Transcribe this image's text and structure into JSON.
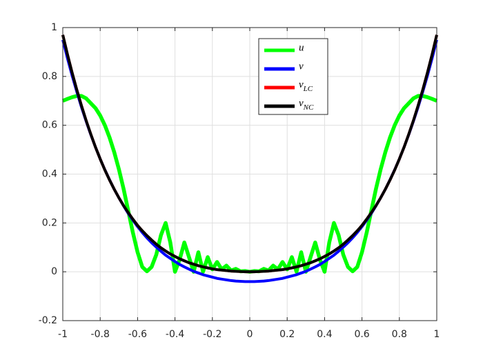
{
  "chart_data": {
    "type": "line",
    "x": [
      -1,
      -0.975,
      -0.95,
      -0.925,
      -0.9,
      -0.875,
      -0.85,
      -0.825,
      -0.8,
      -0.775,
      -0.75,
      -0.725,
      -0.7,
      -0.675,
      -0.65,
      -0.625,
      -0.6,
      -0.575,
      -0.55,
      -0.525,
      -0.5,
      -0.475,
      -0.45,
      -0.425,
      -0.4,
      -0.375,
      -0.35,
      -0.325,
      -0.3,
      -0.275,
      -0.25,
      -0.225,
      -0.2,
      -0.175,
      -0.15,
      -0.125,
      -0.1,
      -0.075,
      -0.05,
      -0.025,
      0,
      0.025,
      0.05,
      0.075,
      0.1,
      0.125,
      0.15,
      0.175,
      0.2,
      0.225,
      0.25,
      0.275,
      0.3,
      0.325,
      0.35,
      0.375,
      0.4,
      0.425,
      0.45,
      0.475,
      0.5,
      0.525,
      0.55,
      0.575,
      0.6,
      0.625,
      0.65,
      0.675,
      0.7,
      0.725,
      0.75,
      0.775,
      0.8,
      0.825,
      0.85,
      0.875,
      0.9,
      0.925,
      0.95,
      0.975,
      1
    ],
    "series": [
      {
        "name": "u",
        "color": "#00ff00",
        "values": [
          0.7,
          0.708,
          0.715,
          0.72,
          0.72,
          0.71,
          0.69,
          0.67,
          0.64,
          0.6,
          0.55,
          0.49,
          0.42,
          0.34,
          0.25,
          0.16,
          0.08,
          0.02,
          0.002,
          0.02,
          0.07,
          0.15,
          0.2,
          0.12,
          0,
          0.05,
          0.12,
          0.06,
          0,
          0.08,
          0,
          0.06,
          0.01,
          0.04,
          0.01,
          0.025,
          0.005,
          0.012,
          0.002,
          0.003,
          0,
          0.003,
          0.002,
          0.012,
          0.005,
          0.025,
          0.01,
          0.04,
          0.01,
          0.06,
          0,
          0.08,
          0,
          0.06,
          0.12,
          0.05,
          0,
          0.12,
          0.2,
          0.15,
          0.07,
          0.02,
          0.002,
          0.02,
          0.08,
          0.16,
          0.25,
          0.34,
          0.42,
          0.49,
          0.55,
          0.6,
          0.64,
          0.67,
          0.69,
          0.71,
          0.72,
          0.72,
          0.715,
          0.708,
          0.7
        ]
      },
      {
        "name": "v",
        "color": "#0000ff",
        "values": [
          0.95,
          0.874,
          0.803,
          0.737,
          0.674,
          0.616,
          0.561,
          0.51,
          0.462,
          0.418,
          0.377,
          0.338,
          0.303,
          0.27,
          0.239,
          0.211,
          0.185,
          0.161,
          0.139,
          0.119,
          0.101,
          0.084,
          0.068,
          0.055,
          0.042,
          0.03,
          0.02,
          0.011,
          0.002,
          -0.005,
          -0.012,
          -0.017,
          -0.022,
          -0.027,
          -0.03,
          -0.033,
          -0.036,
          -0.038,
          -0.039,
          -0.04,
          -0.04,
          -0.04,
          -0.039,
          -0.038,
          -0.036,
          -0.033,
          -0.03,
          -0.027,
          -0.022,
          -0.017,
          -0.012,
          -0.005,
          0.002,
          0.011,
          0.02,
          0.03,
          0.042,
          0.055,
          0.068,
          0.084,
          0.101,
          0.119,
          0.139,
          0.161,
          0.185,
          0.211,
          0.239,
          0.27,
          0.303,
          0.338,
          0.377,
          0.418,
          0.462,
          0.51,
          0.561,
          0.616,
          0.674,
          0.737,
          0.803,
          0.874,
          0.95
        ]
      },
      {
        "name": "v_{LC}",
        "color": "#ff0000",
        "values": [
          0.97,
          0.89,
          0.815,
          0.745,
          0.68,
          0.619,
          0.563,
          0.51,
          0.462,
          0.417,
          0.376,
          0.338,
          0.303,
          0.271,
          0.242,
          0.215,
          0.19,
          0.168,
          0.148,
          0.13,
          0.113,
          0.098,
          0.085,
          0.073,
          0.063,
          0.053,
          0.045,
          0.037,
          0.031,
          0.025,
          0.02,
          0.016,
          0.012,
          0.009,
          0.007,
          0.005,
          0.003,
          0.002,
          0.001,
          0,
          0,
          0,
          0.001,
          0.002,
          0.003,
          0.005,
          0.007,
          0.009,
          0.012,
          0.016,
          0.02,
          0.025,
          0.031,
          0.037,
          0.045,
          0.053,
          0.063,
          0.073,
          0.085,
          0.098,
          0.113,
          0.13,
          0.148,
          0.168,
          0.19,
          0.215,
          0.242,
          0.271,
          0.303,
          0.338,
          0.376,
          0.417,
          0.462,
          0.51,
          0.563,
          0.619,
          0.68,
          0.745,
          0.815,
          0.89,
          0.97
        ]
      },
      {
        "name": "v_{NC}",
        "color": "#000000",
        "values": [
          0.97,
          0.89,
          0.815,
          0.745,
          0.68,
          0.619,
          0.563,
          0.51,
          0.462,
          0.417,
          0.376,
          0.338,
          0.303,
          0.271,
          0.242,
          0.215,
          0.19,
          0.168,
          0.148,
          0.13,
          0.113,
          0.098,
          0.085,
          0.073,
          0.063,
          0.053,
          0.045,
          0.037,
          0.031,
          0.025,
          0.02,
          0.016,
          0.012,
          0.009,
          0.007,
          0.005,
          0.003,
          0.002,
          0.001,
          0,
          0,
          0,
          0.001,
          0.002,
          0.003,
          0.005,
          0.007,
          0.009,
          0.012,
          0.016,
          0.02,
          0.025,
          0.031,
          0.037,
          0.045,
          0.053,
          0.063,
          0.073,
          0.085,
          0.098,
          0.113,
          0.13,
          0.148,
          0.168,
          0.19,
          0.215,
          0.242,
          0.271,
          0.303,
          0.338,
          0.376,
          0.417,
          0.462,
          0.51,
          0.563,
          0.619,
          0.68,
          0.745,
          0.815,
          0.89,
          0.97
        ]
      }
    ],
    "xlim": [
      -1,
      1
    ],
    "xticks": [
      -1,
      -0.8,
      -0.6,
      -0.4,
      -0.2,
      0,
      0.2,
      0.4,
      0.6,
      0.8,
      1
    ],
    "ylim": [
      -0.2,
      1
    ],
    "yticks": [
      -0.2,
      0,
      0.2,
      0.4,
      0.6,
      0.8,
      1
    ],
    "grid": true,
    "legend": "north"
  }
}
